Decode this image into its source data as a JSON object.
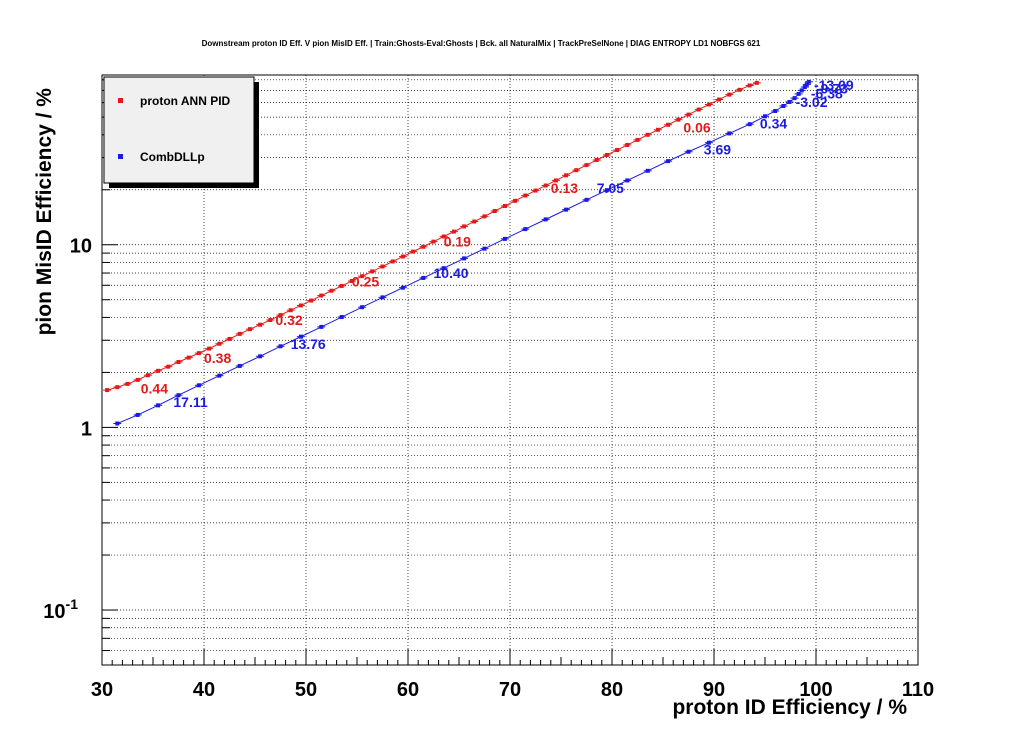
{
  "chart_data": {
    "type": "line",
    "title": "Downstream proton ID Eff. V pion MisID Eff. | Train:Ghosts-Eval:Ghosts | Bck. all NaturalMix | TrackPreSelNone | DIAG ENTROPY LD1 NOBFGS 621",
    "xlabel": "proton ID Efficiency / %",
    "ylabel": "pion MisID Efficiency / %",
    "xlim": [
      30,
      110
    ],
    "ylim": [
      0.05,
      85
    ],
    "yscale": "log",
    "grid": true,
    "legend_position": "top-left",
    "x_ticks": [
      "30",
      "40",
      "50",
      "60",
      "70",
      "80",
      "90",
      "100",
      "110"
    ],
    "y_ticks": [
      {
        "value": 0.1,
        "base": "10",
        "exp": "-1"
      },
      {
        "value": 1,
        "base": "1",
        "exp": ""
      },
      {
        "value": 10,
        "base": "10",
        "exp": ""
      }
    ],
    "series": [
      {
        "name": "proton ANN PID",
        "color": "#e31a1a",
        "x": [
          30.5,
          31.5,
          32.5,
          33.5,
          34.5,
          35.5,
          36.5,
          37.5,
          38.5,
          39.5,
          40.5,
          41.5,
          42.5,
          43.5,
          44.5,
          45.5,
          46.5,
          47.5,
          48.5,
          49.5,
          50.5,
          51.5,
          52.5,
          53.5,
          54.5,
          55.5,
          56.5,
          57.5,
          58.5,
          59.5,
          60.5,
          61.5,
          62.5,
          63.5,
          64.5,
          65.5,
          66.5,
          67.5,
          68.5,
          69.5,
          70.5,
          71.5,
          72.5,
          73.5,
          74.5,
          75.5,
          76.5,
          77.5,
          78.5,
          79.5,
          80.5,
          81.5,
          82.5,
          83.5,
          84.5,
          85.5,
          86.5,
          87.5,
          88.5,
          89.5,
          90.5,
          91.5,
          92.5,
          93.5,
          94.2
        ],
        "y": [
          1.6,
          1.66,
          1.73,
          1.82,
          1.93,
          2.04,
          2.15,
          2.28,
          2.41,
          2.55,
          2.7,
          2.87,
          3.05,
          3.25,
          3.45,
          3.65,
          3.87,
          4.12,
          4.38,
          4.65,
          4.95,
          5.27,
          5.6,
          5.95,
          6.33,
          6.73,
          7.15,
          7.6,
          8.1,
          8.62,
          9.17,
          9.75,
          10.4,
          11.1,
          11.8,
          12.6,
          13.4,
          14.3,
          15.3,
          16.3,
          17.4,
          18.6,
          19.8,
          21.1,
          22.5,
          24.0,
          25.6,
          27.3,
          29.1,
          31.0,
          33.0,
          35.2,
          37.5,
          40.0,
          42.6,
          45.4,
          48.4,
          51.6,
          55.0,
          58.6,
          62.4,
          66.4,
          70.5,
          74.5,
          77.0
        ]
      },
      {
        "name": "CombDLLp",
        "color": "#1a1ae3",
        "x": [
          31.5,
          33.5,
          35.5,
          37.5,
          39.5,
          41.5,
          43.5,
          45.5,
          47.5,
          49.5,
          51.5,
          53.5,
          55.5,
          57.5,
          59.5,
          61.5,
          63.5,
          65.5,
          67.5,
          69.5,
          71.5,
          73.5,
          75.5,
          77.5,
          79.5,
          81.5,
          83.5,
          85.5,
          87.5,
          89.5,
          91.5,
          93.5,
          95.0,
          96.0,
          96.8,
          97.4,
          97.9,
          98.3,
          98.6,
          98.9,
          99.1,
          99.3
        ],
        "y": [
          1.05,
          1.17,
          1.32,
          1.5,
          1.7,
          1.92,
          2.17,
          2.45,
          2.78,
          3.14,
          3.55,
          4.02,
          4.55,
          5.15,
          5.82,
          6.58,
          7.44,
          8.42,
          9.52,
          10.77,
          12.18,
          13.77,
          15.57,
          17.61,
          19.9,
          22.5,
          25.4,
          28.7,
          32.3,
          36.2,
          40.7,
          45.7,
          50.5,
          54.0,
          57.5,
          60.5,
          63.5,
          67.0,
          70.0,
          73.0,
          75.5,
          78.0
        ]
      }
    ],
    "annotations": [
      {
        "series": 0,
        "text": "0.44",
        "x": 33.8,
        "y": 1.63
      },
      {
        "series": 0,
        "text": "0.38",
        "x": 40.0,
        "y": 2.4
      },
      {
        "series": 0,
        "text": "0.32",
        "x": 47.0,
        "y": 3.87
      },
      {
        "series": 0,
        "text": "0.25",
        "x": 54.5,
        "y": 6.3
      },
      {
        "series": 0,
        "text": "0.19",
        "x": 63.5,
        "y": 10.4
      },
      {
        "series": 0,
        "text": "0.13",
        "x": 74.0,
        "y": 20.5
      },
      {
        "series": 0,
        "text": "0.06",
        "x": 87.0,
        "y": 43.8
      },
      {
        "series": 1,
        "text": "17.11",
        "x": 37.0,
        "y": 1.38
      },
      {
        "series": 1,
        "text": "13.76",
        "x": 48.5,
        "y": 2.87
      },
      {
        "series": 1,
        "text": "10.40",
        "x": 62.5,
        "y": 7.0
      },
      {
        "series": 1,
        "text": "7.05",
        "x": 78.5,
        "y": 20.5
      },
      {
        "series": 1,
        "text": "3.69",
        "x": 89.0,
        "y": 33.3
      },
      {
        "series": 1,
        "text": "0.34",
        "x": 94.5,
        "y": 46.0
      },
      {
        "series": 1,
        "text": "-3.02",
        "x": 98.0,
        "y": 60.5
      },
      {
        "series": 1,
        "text": "-6.38",
        "x": 99.5,
        "y": 67.5
      },
      {
        "series": 1,
        "text": "-9.73",
        "x": 100.0,
        "y": 71.5
      },
      {
        "series": 1,
        "text": "-13.09",
        "x": 99.8,
        "y": 75.0
      }
    ]
  }
}
